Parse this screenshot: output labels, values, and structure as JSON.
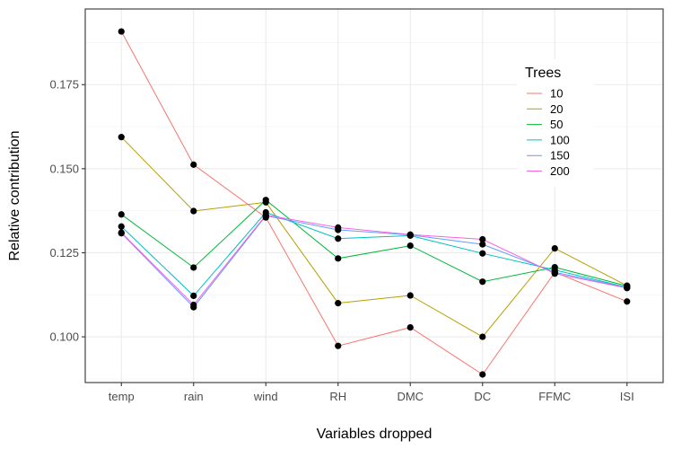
{
  "chart_data": {
    "type": "line",
    "xlabel": "Variables dropped",
    "ylabel": "Relative contribution",
    "categories": [
      "temp",
      "rain",
      "wind",
      "RH",
      "DMC",
      "DC",
      "FFMC",
      "ISI"
    ],
    "ylim": [
      0.0864,
      0.1975
    ],
    "yticks": [
      0.1,
      0.125,
      0.15,
      0.175
    ],
    "ytick_labels": [
      "0.100",
      "0.125",
      "0.150",
      "0.175"
    ],
    "grid": true,
    "legend": {
      "title": "Trees",
      "placement": "top-right"
    },
    "series": [
      {
        "name": "10",
        "color": "#F8766D",
        "values": [
          0.1908,
          0.1512,
          0.1355,
          0.0973,
          0.1028,
          0.0888,
          0.1192,
          0.1105
        ]
      },
      {
        "name": "20",
        "color": "#B79F00",
        "values": [
          0.1594,
          0.1374,
          0.14,
          0.11,
          0.1123,
          0.1,
          0.1263,
          0.1152
        ]
      },
      {
        "name": "50",
        "color": "#00BA38",
        "values": [
          0.1364,
          0.1206,
          0.1407,
          0.1233,
          0.1271,
          0.1164,
          0.1207,
          0.1151
        ]
      },
      {
        "name": "100",
        "color": "#00BFC4",
        "values": [
          0.1328,
          0.1122,
          0.137,
          0.1292,
          0.1301,
          0.1248,
          0.1199,
          0.1147
        ]
      },
      {
        "name": "150",
        "color": "#619CFF",
        "values": [
          0.1308,
          0.1088,
          0.136,
          0.1318,
          0.1303,
          0.1275,
          0.1192,
          0.1146
        ]
      },
      {
        "name": "200",
        "color": "#F564E3",
        "values": [
          0.131,
          0.1095,
          0.1362,
          0.1325,
          0.1304,
          0.129,
          0.1188,
          0.1145
        ]
      }
    ]
  }
}
